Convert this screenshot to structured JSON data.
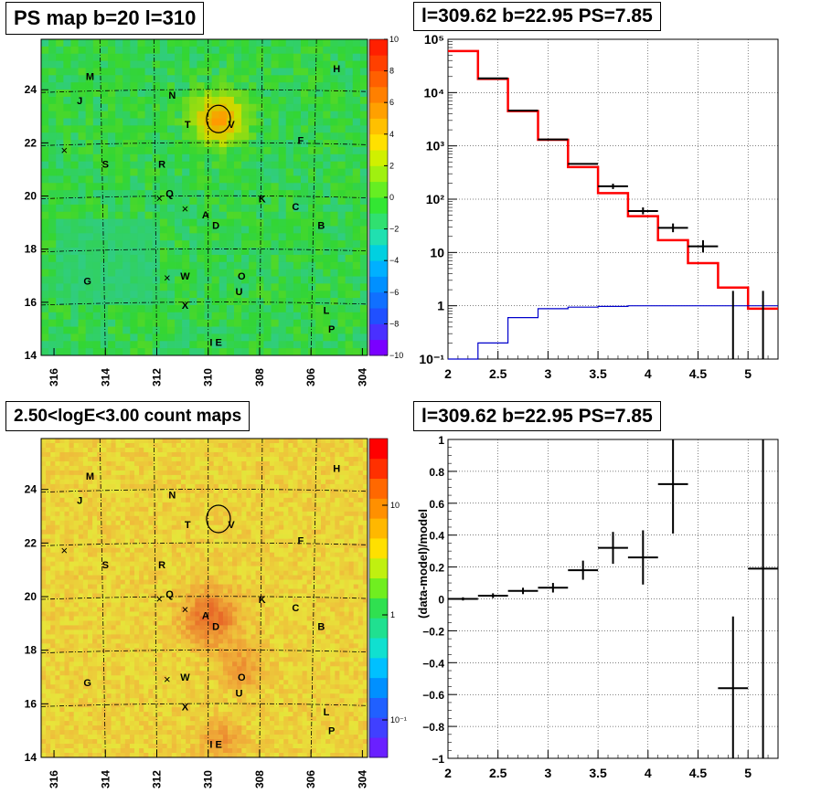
{
  "colors": {
    "map_base": "#33d633",
    "count_base": "#d9e83a",
    "model_line": "#ff0000",
    "baseline_line": "#0000cc",
    "data_marks": "#000000"
  },
  "panels": {
    "ps_map": {
      "title": "PS map b=20 l=310",
      "x_ticks": [
        "316",
        "314",
        "312",
        "310",
        "308",
        "306",
        "304"
      ],
      "y_ticks": [
        "16",
        "18",
        "20",
        "22",
        "24"
      ],
      "y_tick_14": "14",
      "colorbar_ticks": [
        "10",
        "8",
        "6",
        "4",
        "2",
        "0",
        "−2",
        "−4",
        "−6",
        "−8",
        "−10"
      ],
      "sources": [
        "M",
        "H",
        "J",
        "N",
        "T",
        "V",
        "F",
        "S",
        "R",
        "Q",
        "K",
        "C",
        "A",
        "D",
        "B",
        "G",
        "W",
        "O",
        "U",
        "X",
        "L",
        "P",
        "I E"
      ]
    },
    "spectrum": {
      "title": "l=309.62 b=22.95 PS=7.85",
      "x_ticks": [
        "2",
        "2.5",
        "3",
        "3.5",
        "4",
        "4.5",
        "5"
      ],
      "y_ticks": [
        "10⁻¹",
        "1",
        "10",
        "10²",
        "10³",
        "10⁴",
        "10⁵"
      ]
    },
    "count_map": {
      "title": "2.50<logE<3.00 count maps",
      "x_ticks": [
        "316",
        "314",
        "312",
        "310",
        "308",
        "306",
        "304"
      ],
      "y_ticks": [
        "16",
        "18",
        "20",
        "22",
        "24"
      ],
      "y_tick_14": "14",
      "colorbar_ticks": [
        "10",
        "1",
        "10⁻¹"
      ],
      "sources": [
        "M",
        "H",
        "J",
        "N",
        "T",
        "V",
        "F",
        "S",
        "R",
        "Q",
        "K",
        "C",
        "A",
        "D",
        "B",
        "G",
        "W",
        "O",
        "U",
        "X",
        "L",
        "P",
        "I E"
      ]
    },
    "residual": {
      "title": "l=309.62 b=22.95 PS=7.85",
      "ylabel": "(data-model)/model",
      "x_ticks": [
        "2",
        "2.5",
        "3",
        "3.5",
        "4",
        "4.5",
        "5"
      ],
      "y_ticks": [
        "−1",
        "−0.8",
        "−0.6",
        "−0.4",
        "−0.2",
        "0",
        "0.2",
        "0.4",
        "0.6",
        "0.8",
        "1"
      ]
    }
  },
  "chart_data": [
    {
      "type": "heatmap",
      "title": "PS map b=20 l=310",
      "xlim": [
        316.5,
        303.8
      ],
      "ylim": [
        14,
        25.9
      ],
      "colorbar_range": [
        -10,
        10
      ],
      "source_labels": [
        {
          "name": "M",
          "l": 314.6,
          "b": 24.5
        },
        {
          "name": "H",
          "l": 305.0,
          "b": 24.8
        },
        {
          "name": "J",
          "l": 315.0,
          "b": 23.6
        },
        {
          "name": "N",
          "l": 311.4,
          "b": 23.8
        },
        {
          "name": "T",
          "l": 310.8,
          "b": 22.7
        },
        {
          "name": "V",
          "l": 309.1,
          "b": 22.7
        },
        {
          "name": "F",
          "l": 306.4,
          "b": 22.1
        },
        {
          "name": "S",
          "l": 314.0,
          "b": 21.2
        },
        {
          "name": "R",
          "l": 311.8,
          "b": 21.2
        },
        {
          "name": "Q",
          "l": 311.5,
          "b": 20.1
        },
        {
          "name": "K",
          "l": 307.9,
          "b": 19.9
        },
        {
          "name": "C",
          "l": 306.6,
          "b": 19.6
        },
        {
          "name": "A",
          "l": 310.1,
          "b": 19.3
        },
        {
          "name": "D",
          "l": 309.7,
          "b": 18.9
        },
        {
          "name": "B",
          "l": 305.6,
          "b": 18.9
        },
        {
          "name": "G",
          "l": 314.7,
          "b": 16.8
        },
        {
          "name": "W",
          "l": 310.9,
          "b": 17.0
        },
        {
          "name": "O",
          "l": 308.7,
          "b": 17.0
        },
        {
          "name": "U",
          "l": 308.8,
          "b": 16.4
        },
        {
          "name": "X",
          "l": 310.9,
          "b": 15.9
        },
        {
          "name": "L",
          "l": 305.4,
          "b": 15.7
        },
        {
          "name": "P",
          "l": 305.2,
          "b": 15.0
        },
        {
          "name": "I E",
          "l": 309.7,
          "b": 14.5
        }
      ],
      "x_marks": [
        {
          "l": 315.6,
          "b": 21.7
        },
        {
          "l": 311.9,
          "b": 19.9
        },
        {
          "l": 310.9,
          "b": 19.5
        },
        {
          "l": 311.6,
          "b": 16.9
        }
      ],
      "circle": {
        "l": 309.6,
        "b": 22.9
      }
    },
    {
      "type": "line",
      "title": "l=309.62 b=22.95 PS=7.85",
      "xlim": [
        2.0,
        5.3
      ],
      "ylim": [
        0.1,
        100000
      ],
      "log_y": true,
      "grid": true,
      "series": [
        {
          "kind": "step",
          "color": "#ff0000",
          "values": [
            [
              2.0,
              60000
            ],
            [
              2.3,
              18000
            ],
            [
              2.6,
              4500
            ],
            [
              2.9,
              1300
            ],
            [
              3.2,
              400
            ],
            [
              3.5,
              130
            ],
            [
              3.8,
              48
            ],
            [
              4.1,
              17
            ],
            [
              4.4,
              6.3
            ],
            [
              4.7,
              2.2
            ],
            [
              5.0,
              0.88
            ],
            [
              5.3,
              0.88
            ]
          ]
        },
        {
          "kind": "step",
          "color": "#0000cc",
          "values": [
            [
              2.0,
              0.1
            ],
            [
              2.3,
              0.2
            ],
            [
              2.6,
              0.6
            ],
            [
              2.9,
              0.88
            ],
            [
              3.2,
              0.94
            ],
            [
              3.5,
              0.97
            ],
            [
              3.8,
              1.0
            ],
            [
              5.3,
              1.0
            ]
          ]
        },
        {
          "kind": "points",
          "color": "#000000",
          "values": [
            {
              "x": 2.45,
              "y": 18500,
              "xerr": 0.15
            },
            {
              "x": 2.75,
              "y": 4600,
              "xerr": 0.15
            },
            {
              "x": 3.05,
              "y": 1320
            },
            {
              "x": 3.35,
              "y": 460,
              "xerr": 0.15
            },
            {
              "x": 3.65,
              "y": 175,
              "xerr": 0.15,
              "ylo": 155,
              "yhi": 195
            },
            {
              "x": 3.95,
              "y": 60,
              "xerr": 0.15,
              "ylo": 52,
              "yhi": 70
            },
            {
              "x": 4.25,
              "y": 29,
              "xerr": 0.15,
              "ylo": 24,
              "yhi": 35
            },
            {
              "x": 4.55,
              "y": 13,
              "xerr": 0.15,
              "ylo": 10,
              "yhi": 17
            },
            {
              "x": 4.85,
              "ylo": 0.1,
              "yhi": 1.9
            },
            {
              "x": 5.15,
              "ylo": 0.1,
              "yhi": 1.9
            }
          ]
        }
      ]
    },
    {
      "type": "heatmap",
      "title": "2.50<logE<3.00 count maps",
      "xlim": [
        316.5,
        303.8
      ],
      "ylim": [
        14,
        25.9
      ],
      "colorbar_range": [
        0.05,
        30
      ],
      "colorbar_log": true,
      "hotspots": [
        {
          "l": 309.9,
          "b": 19.2
        },
        {
          "l": 309.5,
          "b": 14.6
        },
        {
          "l": 308.7,
          "b": 17.3
        }
      ],
      "circle": {
        "l": 309.6,
        "b": 22.9
      }
    },
    {
      "type": "scatter",
      "title": "l=309.62 b=22.95 PS=7.85",
      "ylabel": "(data-model)/model",
      "xlim": [
        2.0,
        5.3
      ],
      "ylim": [
        -1,
        1
      ],
      "grid": true,
      "points": [
        {
          "x": 2.15,
          "y": 0.0,
          "xerr": 0.15,
          "yerr": 0.01
        },
        {
          "x": 2.45,
          "y": 0.02,
          "xerr": 0.15,
          "yerr": 0.015
        },
        {
          "x": 2.75,
          "y": 0.05,
          "xerr": 0.15,
          "yerr": 0.02
        },
        {
          "x": 3.05,
          "y": 0.07,
          "xerr": 0.15,
          "yerr": 0.03
        },
        {
          "x": 3.35,
          "y": 0.18,
          "xerr": 0.15,
          "yerr": 0.06
        },
        {
          "x": 3.65,
          "y": 0.32,
          "xerr": 0.15,
          "yerr": 0.1
        },
        {
          "x": 3.95,
          "y": 0.26,
          "xerr": 0.15,
          "yerr": 0.17
        },
        {
          "x": 4.25,
          "y": 0.72,
          "xerr": 0.15,
          "yerr": 0.31
        },
        {
          "x": 4.85,
          "y": -0.56,
          "xerr": 0.15,
          "yerr": 0.45
        },
        {
          "x": 5.15,
          "y": 0.19,
          "xerr": 0.15,
          "yerr": 1.2
        }
      ]
    }
  ]
}
